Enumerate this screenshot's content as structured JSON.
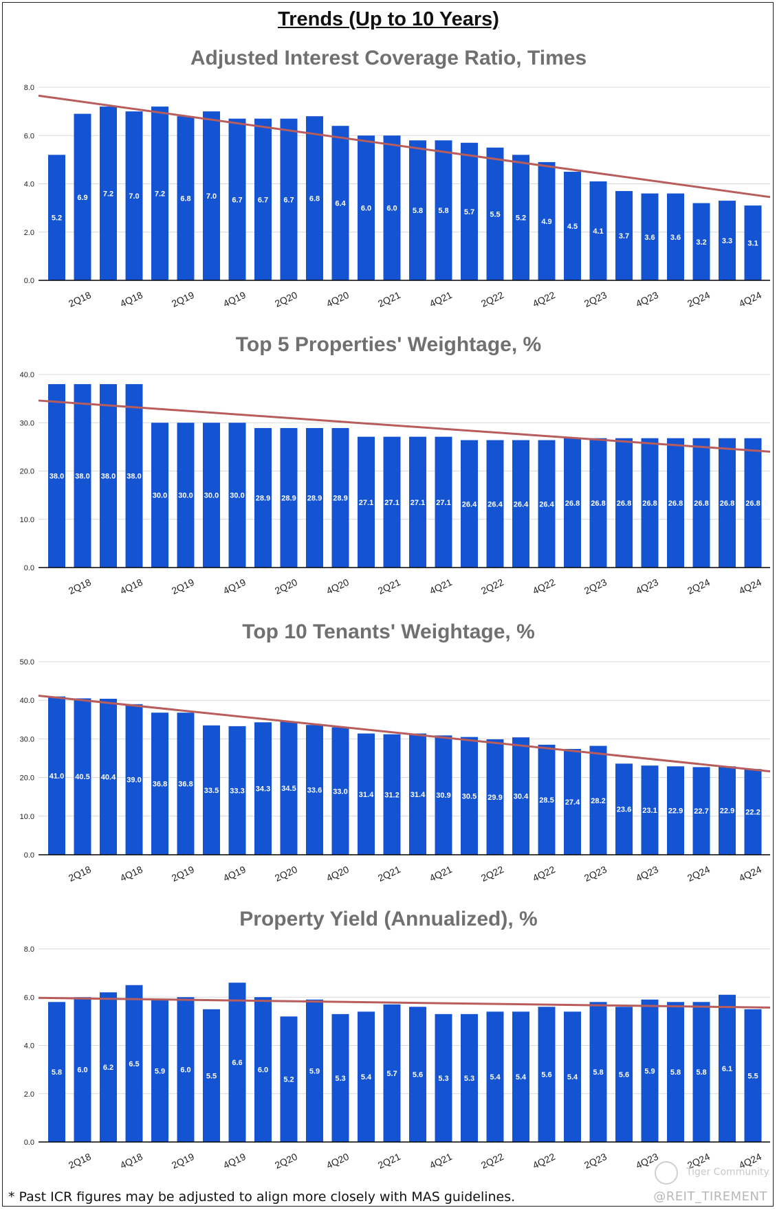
{
  "page": {
    "title": "Trends (Up to 10 Years)",
    "footnote": "* Past ICR figures may be adjusted to align more closely with MAS guidelines.",
    "handle": "@REIT_TIREMENT",
    "watermark": "Tiger Community"
  },
  "colors": {
    "bar": "#1454d2",
    "trend": "#b85c5c",
    "title": "#707070",
    "grid": "#d9d9d9",
    "axis": "#000000"
  },
  "chart_data": [
    {
      "type": "bar",
      "title": "Adjusted Interest Coverage Ratio, Times",
      "categories": [
        "1Q18",
        "2Q18",
        "3Q18",
        "4Q18",
        "1Q19",
        "2Q19",
        "3Q19",
        "4Q19",
        "1Q20",
        "2Q20",
        "3Q20",
        "4Q20",
        "1Q21",
        "2Q21",
        "3Q21",
        "4Q21",
        "1Q22",
        "2Q22",
        "3Q22",
        "4Q22",
        "1Q23",
        "2Q23",
        "3Q23",
        "4Q23",
        "1Q24",
        "2Q24",
        "3Q24",
        "4Q24"
      ],
      "tick_labels": [
        "2Q18",
        "4Q18",
        "2Q19",
        "4Q19",
        "2Q20",
        "4Q20",
        "2Q21",
        "4Q21",
        "2Q22",
        "4Q22",
        "2Q23",
        "4Q23",
        "2Q24",
        "4Q24"
      ],
      "values": [
        5.2,
        6.9,
        7.2,
        7.0,
        7.2,
        6.8,
        7.0,
        6.7,
        6.7,
        6.7,
        6.8,
        6.4,
        6.0,
        6.0,
        5.8,
        5.8,
        5.7,
        5.5,
        5.2,
        4.9,
        4.5,
        4.1,
        3.7,
        3.6,
        3.6,
        3.2,
        3.3,
        3.1
      ],
      "value_labels": [
        "5.2",
        "6.9",
        "7.2",
        "7.0",
        "7.2",
        "6.8",
        "7.0",
        "6.7",
        "6.7",
        "6.7",
        "6.8",
        "6.4",
        "6.0",
        "6.0",
        "5.8",
        "5.8",
        "5.7",
        "5.5",
        "5.2",
        "4.9",
        "4.5",
        "4.1",
        "3.7",
        "3.6",
        "3.6",
        "3.2",
        "3.3",
        "3.1"
      ],
      "ylim": [
        0,
        8
      ],
      "yticks": [
        "0.0",
        "2.0",
        "4.0",
        "6.0",
        "8.0"
      ],
      "trendline": [
        7.65,
        3.45
      ]
    },
    {
      "type": "bar",
      "title": "Top 5 Properties' Weightage, %",
      "categories": [
        "1Q18",
        "2Q18",
        "3Q18",
        "4Q18",
        "1Q19",
        "2Q19",
        "3Q19",
        "4Q19",
        "1Q20",
        "2Q20",
        "3Q20",
        "4Q20",
        "1Q21",
        "2Q21",
        "3Q21",
        "4Q21",
        "1Q22",
        "2Q22",
        "3Q22",
        "4Q22",
        "1Q23",
        "2Q23",
        "3Q23",
        "4Q23",
        "1Q24",
        "2Q24",
        "3Q24",
        "4Q24"
      ],
      "tick_labels": [
        "2Q18",
        "4Q18",
        "2Q19",
        "4Q19",
        "2Q20",
        "4Q20",
        "2Q21",
        "4Q21",
        "2Q22",
        "4Q22",
        "2Q23",
        "4Q23",
        "2Q24",
        "4Q24"
      ],
      "values": [
        38.0,
        38.0,
        38.0,
        38.0,
        30.0,
        30.0,
        30.0,
        30.0,
        28.9,
        28.9,
        28.9,
        28.9,
        27.1,
        27.1,
        27.1,
        27.1,
        26.4,
        26.4,
        26.4,
        26.4,
        26.8,
        26.8,
        26.8,
        26.8,
        26.8,
        26.8,
        26.8,
        26.8
      ],
      "value_labels": [
        "38.0",
        "38.0",
        "38.0",
        "38.0",
        "30.0",
        "30.0",
        "30.0",
        "30.0",
        "28.9",
        "28.9",
        "28.9",
        "28.9",
        "27.1",
        "27.1",
        "27.1",
        "27.1",
        "26.4",
        "26.4",
        "26.4",
        "26.4",
        "26.8",
        "26.8",
        "26.8",
        "26.8",
        "26.8",
        "26.8",
        "26.8",
        "26.8"
      ],
      "ylim": [
        0,
        40
      ],
      "yticks": [
        "0.0",
        "10.0",
        "20.0",
        "30.0",
        "40.0"
      ],
      "trendline": [
        34.6,
        24.0
      ]
    },
    {
      "type": "bar",
      "title": "Top 10 Tenants' Weightage, %",
      "categories": [
        "1Q18",
        "2Q18",
        "3Q18",
        "4Q18",
        "1Q19",
        "2Q19",
        "3Q19",
        "4Q19",
        "1Q20",
        "2Q20",
        "3Q20",
        "4Q20",
        "1Q21",
        "2Q21",
        "3Q21",
        "4Q21",
        "1Q22",
        "2Q22",
        "3Q22",
        "4Q22",
        "1Q23",
        "2Q23",
        "3Q23",
        "4Q23",
        "1Q24",
        "2Q24",
        "3Q24",
        "4Q24"
      ],
      "tick_labels": [
        "2Q18",
        "4Q18",
        "2Q19",
        "4Q19",
        "2Q20",
        "4Q20",
        "2Q21",
        "4Q21",
        "2Q22",
        "4Q22",
        "2Q23",
        "4Q23",
        "2Q24",
        "4Q24"
      ],
      "values": [
        41.0,
        40.5,
        40.4,
        39.0,
        36.8,
        36.8,
        33.5,
        33.3,
        34.3,
        34.5,
        33.6,
        33.0,
        31.4,
        31.2,
        31.4,
        30.9,
        30.5,
        29.9,
        30.4,
        28.5,
        27.4,
        28.2,
        23.6,
        23.1,
        22.9,
        22.7,
        22.9,
        22.2
      ],
      "value_labels": [
        "41.0",
        "40.5",
        "40.4",
        "39.0",
        "36.8",
        "36.8",
        "33.5",
        "33.3",
        "34.3",
        "34.5",
        "33.6",
        "33.0",
        "31.4",
        "31.2",
        "31.4",
        "30.9",
        "30.5",
        "29.9",
        "30.4",
        "28.5",
        "27.4",
        "28.2",
        "23.6",
        "23.1",
        "22.9",
        "22.7",
        "22.9",
        "22.2"
      ],
      "ylim": [
        0,
        50
      ],
      "yticks": [
        "0.0",
        "10.0",
        "20.0",
        "30.0",
        "40.0",
        "50.0"
      ],
      "trendline": [
        41.2,
        21.6
      ]
    },
    {
      "type": "bar",
      "title": "Property Yield (Annualized), %",
      "categories": [
        "1Q18",
        "2Q18",
        "3Q18",
        "4Q18",
        "1Q19",
        "2Q19",
        "3Q19",
        "4Q19",
        "1Q20",
        "2Q20",
        "3Q20",
        "4Q20",
        "1Q21",
        "2Q21",
        "3Q21",
        "4Q21",
        "1Q22",
        "2Q22",
        "3Q22",
        "4Q22",
        "1Q23",
        "2Q23",
        "3Q23",
        "4Q23",
        "1Q24",
        "2Q24",
        "3Q24",
        "4Q24"
      ],
      "tick_labels": [
        "2Q18",
        "4Q18",
        "2Q19",
        "4Q19",
        "2Q20",
        "4Q20",
        "2Q21",
        "4Q21",
        "2Q22",
        "4Q22",
        "2Q23",
        "4Q23",
        "2Q24",
        "4Q24"
      ],
      "values": [
        5.8,
        6.0,
        6.2,
        6.5,
        5.9,
        6.0,
        5.5,
        6.6,
        6.0,
        5.2,
        5.9,
        5.3,
        5.4,
        5.7,
        5.6,
        5.3,
        5.3,
        5.4,
        5.4,
        5.6,
        5.4,
        5.8,
        5.6,
        5.9,
        5.8,
        5.8,
        6.1,
        5.5
      ],
      "value_labels": [
        "5.8",
        "6.0",
        "6.2",
        "6.5",
        "5.9",
        "6.0",
        "5.5",
        "6.6",
        "6.0",
        "5.2",
        "5.9",
        "5.3",
        "5.4",
        "5.7",
        "5.6",
        "5.3",
        "5.3",
        "5.4",
        "5.4",
        "5.6",
        "5.4",
        "5.8",
        "5.6",
        "5.9",
        "5.8",
        "5.8",
        "6.1",
        "5.5"
      ],
      "ylim": [
        0,
        8
      ],
      "yticks": [
        "0.0",
        "2.0",
        "4.0",
        "6.0",
        "8.0"
      ],
      "trendline": [
        5.97,
        5.57
      ]
    }
  ]
}
